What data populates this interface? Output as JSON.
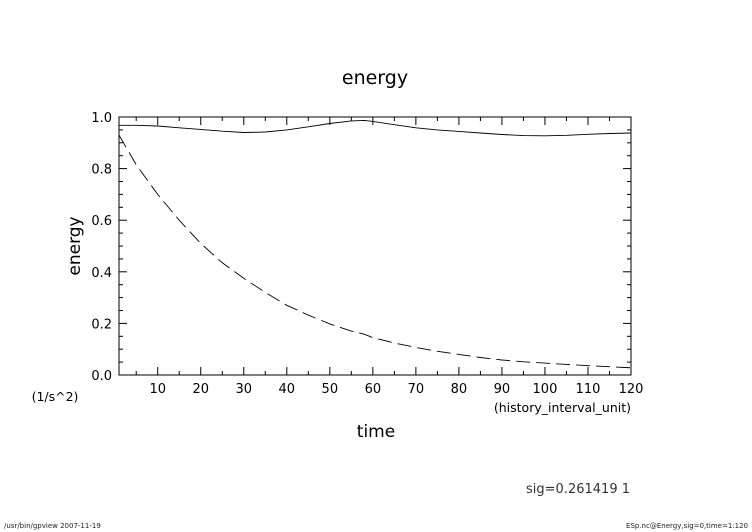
{
  "chart_data": {
    "type": "line",
    "title": "energy",
    "xlabel": "time",
    "x_unit": "(history_interval_unit)",
    "ylabel": "energy",
    "y_unit": "(1/s^2)",
    "xlim": [
      1,
      120
    ],
    "ylim": [
      0,
      1
    ],
    "xticks": [
      10,
      20,
      30,
      40,
      50,
      60,
      70,
      80,
      90,
      100,
      110,
      120
    ],
    "yticks": [
      "0.0",
      "0.2",
      "0.4",
      "0.6",
      "0.8",
      "1.0"
    ],
    "grid": false,
    "x": [
      1,
      5,
      10,
      15,
      20,
      25,
      30,
      35,
      40,
      45,
      50,
      55,
      58,
      60,
      65,
      70,
      75,
      80,
      85,
      90,
      95,
      100,
      105,
      110,
      115,
      120
    ],
    "series": [
      {
        "style": "solid",
        "values": [
          0.968,
          0.968,
          0.965,
          0.958,
          0.952,
          0.945,
          0.94,
          0.942,
          0.95,
          0.962,
          0.975,
          0.985,
          0.987,
          0.983,
          0.97,
          0.958,
          0.95,
          0.944,
          0.938,
          0.932,
          0.928,
          0.927,
          0.929,
          0.933,
          0.936,
          0.938
        ]
      },
      {
        "style": "dashed",
        "values": [
          0.93,
          0.815,
          0.7,
          0.6,
          0.51,
          0.435,
          0.375,
          0.32,
          0.27,
          0.232,
          0.198,
          0.17,
          0.158,
          0.145,
          0.124,
          0.107,
          0.092,
          0.08,
          0.068,
          0.058,
          0.051,
          0.046,
          0.041,
          0.036,
          0.032,
          0.028
        ]
      }
    ]
  },
  "annotation": "sig=0.261419  1",
  "footer": {
    "left": "/usr/bin/gpview   2007-11-19",
    "right": "ESp.nc@Energy,sig=0,time=1:120"
  }
}
